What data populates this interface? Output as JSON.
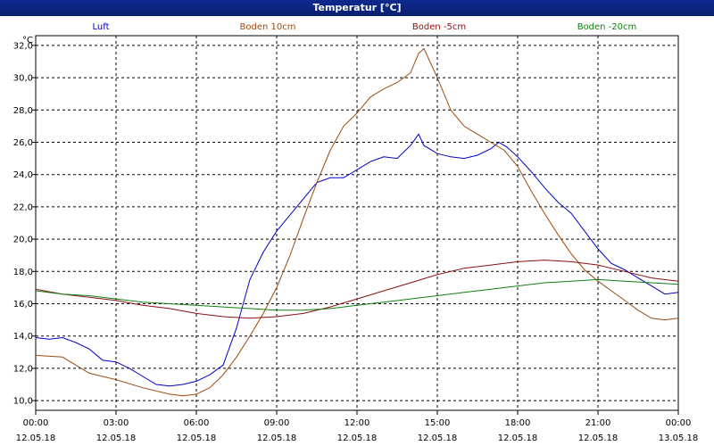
{
  "window": {
    "title": "Temperatur [°C]"
  },
  "chart_data": {
    "type": "line",
    "ylabel": "°C",
    "ylim": [
      9.4,
      32.6
    ],
    "xlim": [
      0,
      24
    ],
    "grid": true,
    "legend_placement": "top",
    "y_ticks": [
      "10,0",
      "12,0",
      "14,0",
      "16,0",
      "18,0",
      "20,0",
      "22,0",
      "24,0",
      "26,0",
      "28,0",
      "30,0",
      "32,0"
    ],
    "x_ticks": [
      {
        "time": "00:00",
        "date": "12.05.18"
      },
      {
        "time": "03:00",
        "date": "12.05.18"
      },
      {
        "time": "06:00",
        "date": "12.05.18"
      },
      {
        "time": "09:00",
        "date": "12.05.18"
      },
      {
        "time": "12:00",
        "date": "12.05.18"
      },
      {
        "time": "15:00",
        "date": "12.05.18"
      },
      {
        "time": "18:00",
        "date": "12.05.18"
      },
      {
        "time": "21:00",
        "date": "12.05.18"
      },
      {
        "time": "00:00",
        "date": "13.05.18"
      }
    ],
    "series": [
      {
        "name": "Luft",
        "color": "#0000c8",
        "points": [
          [
            0,
            13.9
          ],
          [
            0.5,
            13.8
          ],
          [
            1,
            13.9
          ],
          [
            1.5,
            13.6
          ],
          [
            2,
            13.2
          ],
          [
            2.5,
            12.5
          ],
          [
            3,
            12.4
          ],
          [
            3.5,
            12.0
          ],
          [
            4,
            11.5
          ],
          [
            4.5,
            11.0
          ],
          [
            5,
            10.9
          ],
          [
            5.5,
            11.0
          ],
          [
            6,
            11.2
          ],
          [
            6.5,
            11.6
          ],
          [
            7,
            12.2
          ],
          [
            7.5,
            14.5
          ],
          [
            8,
            17.5
          ],
          [
            8.5,
            19.2
          ],
          [
            9,
            20.5
          ],
          [
            9.5,
            21.5
          ],
          [
            10,
            22.5
          ],
          [
            10.5,
            23.5
          ],
          [
            11,
            23.8
          ],
          [
            11.5,
            23.8
          ],
          [
            12,
            24.3
          ],
          [
            12.5,
            24.8
          ],
          [
            13,
            25.1
          ],
          [
            13.5,
            25.0
          ],
          [
            14,
            25.8
          ],
          [
            14.3,
            26.5
          ],
          [
            14.5,
            25.8
          ],
          [
            15,
            25.3
          ],
          [
            15.5,
            25.1
          ],
          [
            16,
            25.0
          ],
          [
            16.5,
            25.2
          ],
          [
            17,
            25.6
          ],
          [
            17.3,
            26.0
          ],
          [
            17.6,
            25.7
          ],
          [
            18,
            25.1
          ],
          [
            18.5,
            24.2
          ],
          [
            19,
            23.2
          ],
          [
            19.5,
            22.3
          ],
          [
            20,
            21.6
          ],
          [
            20.5,
            20.5
          ],
          [
            21,
            19.4
          ],
          [
            21.5,
            18.5
          ],
          [
            22,
            18.1
          ],
          [
            22.5,
            17.6
          ],
          [
            23,
            17.1
          ],
          [
            23.5,
            16.6
          ],
          [
            24,
            16.7
          ]
        ]
      },
      {
        "name": "Boden 10cm",
        "color": "#9a4a10",
        "points": [
          [
            0,
            12.8
          ],
          [
            1,
            12.7
          ],
          [
            1.5,
            12.2
          ],
          [
            2,
            11.7
          ],
          [
            3,
            11.3
          ],
          [
            4,
            10.8
          ],
          [
            5,
            10.4
          ],
          [
            5.5,
            10.3
          ],
          [
            6,
            10.4
          ],
          [
            6.5,
            10.8
          ],
          [
            7,
            11.6
          ],
          [
            7.5,
            12.7
          ],
          [
            8,
            14.0
          ],
          [
            8.5,
            15.4
          ],
          [
            9,
            17.0
          ],
          [
            9.5,
            19.0
          ],
          [
            10,
            21.3
          ],
          [
            10.5,
            23.5
          ],
          [
            11,
            25.5
          ],
          [
            11.5,
            27.0
          ],
          [
            12,
            27.8
          ],
          [
            12.5,
            28.8
          ],
          [
            13,
            29.3
          ],
          [
            13.5,
            29.7
          ],
          [
            14,
            30.3
          ],
          [
            14.3,
            31.5
          ],
          [
            14.5,
            31.8
          ],
          [
            15,
            30.0
          ],
          [
            15.5,
            28.0
          ],
          [
            16,
            27.0
          ],
          [
            16.5,
            26.5
          ],
          [
            17,
            26.0
          ],
          [
            17.5,
            25.5
          ],
          [
            18,
            24.5
          ],
          [
            18.5,
            23.0
          ],
          [
            19,
            21.6
          ],
          [
            19.5,
            20.3
          ],
          [
            20,
            19.1
          ],
          [
            20.5,
            18.1
          ],
          [
            21,
            17.4
          ],
          [
            21.5,
            16.8
          ],
          [
            22,
            16.2
          ],
          [
            22.5,
            15.6
          ],
          [
            23,
            15.1
          ],
          [
            23.5,
            15.0
          ],
          [
            24,
            15.1
          ]
        ]
      },
      {
        "name": "Boden -5cm",
        "color": "#8b1010",
        "points": [
          [
            0,
            16.9
          ],
          [
            1,
            16.6
          ],
          [
            2,
            16.4
          ],
          [
            3,
            16.2
          ],
          [
            4,
            15.9
          ],
          [
            5,
            15.7
          ],
          [
            6,
            15.4
          ],
          [
            7,
            15.2
          ],
          [
            8,
            15.1
          ],
          [
            9,
            15.2
          ],
          [
            10,
            15.4
          ],
          [
            11,
            15.8
          ],
          [
            12,
            16.3
          ],
          [
            13,
            16.8
          ],
          [
            14,
            17.3
          ],
          [
            15,
            17.8
          ],
          [
            16,
            18.2
          ],
          [
            17,
            18.4
          ],
          [
            18,
            18.6
          ],
          [
            19,
            18.7
          ],
          [
            20,
            18.6
          ],
          [
            21,
            18.4
          ],
          [
            22,
            18.0
          ],
          [
            23,
            17.6
          ],
          [
            24,
            17.4
          ]
        ]
      },
      {
        "name": "Boden -20cm",
        "color": "#108010",
        "points": [
          [
            0,
            16.8
          ],
          [
            1,
            16.6
          ],
          [
            2,
            16.5
          ],
          [
            3,
            16.3
          ],
          [
            4,
            16.1
          ],
          [
            5,
            16.0
          ],
          [
            6,
            15.9
          ],
          [
            7,
            15.8
          ],
          [
            8,
            15.7
          ],
          [
            9,
            15.6
          ],
          [
            10,
            15.6
          ],
          [
            11,
            15.7
          ],
          [
            12,
            15.9
          ],
          [
            13,
            16.1
          ],
          [
            14,
            16.3
          ],
          [
            15,
            16.5
          ],
          [
            16,
            16.7
          ],
          [
            17,
            16.9
          ],
          [
            18,
            17.1
          ],
          [
            19,
            17.3
          ],
          [
            20,
            17.4
          ],
          [
            21,
            17.5
          ],
          [
            22,
            17.4
          ],
          [
            23,
            17.3
          ],
          [
            24,
            17.2
          ]
        ]
      }
    ]
  }
}
